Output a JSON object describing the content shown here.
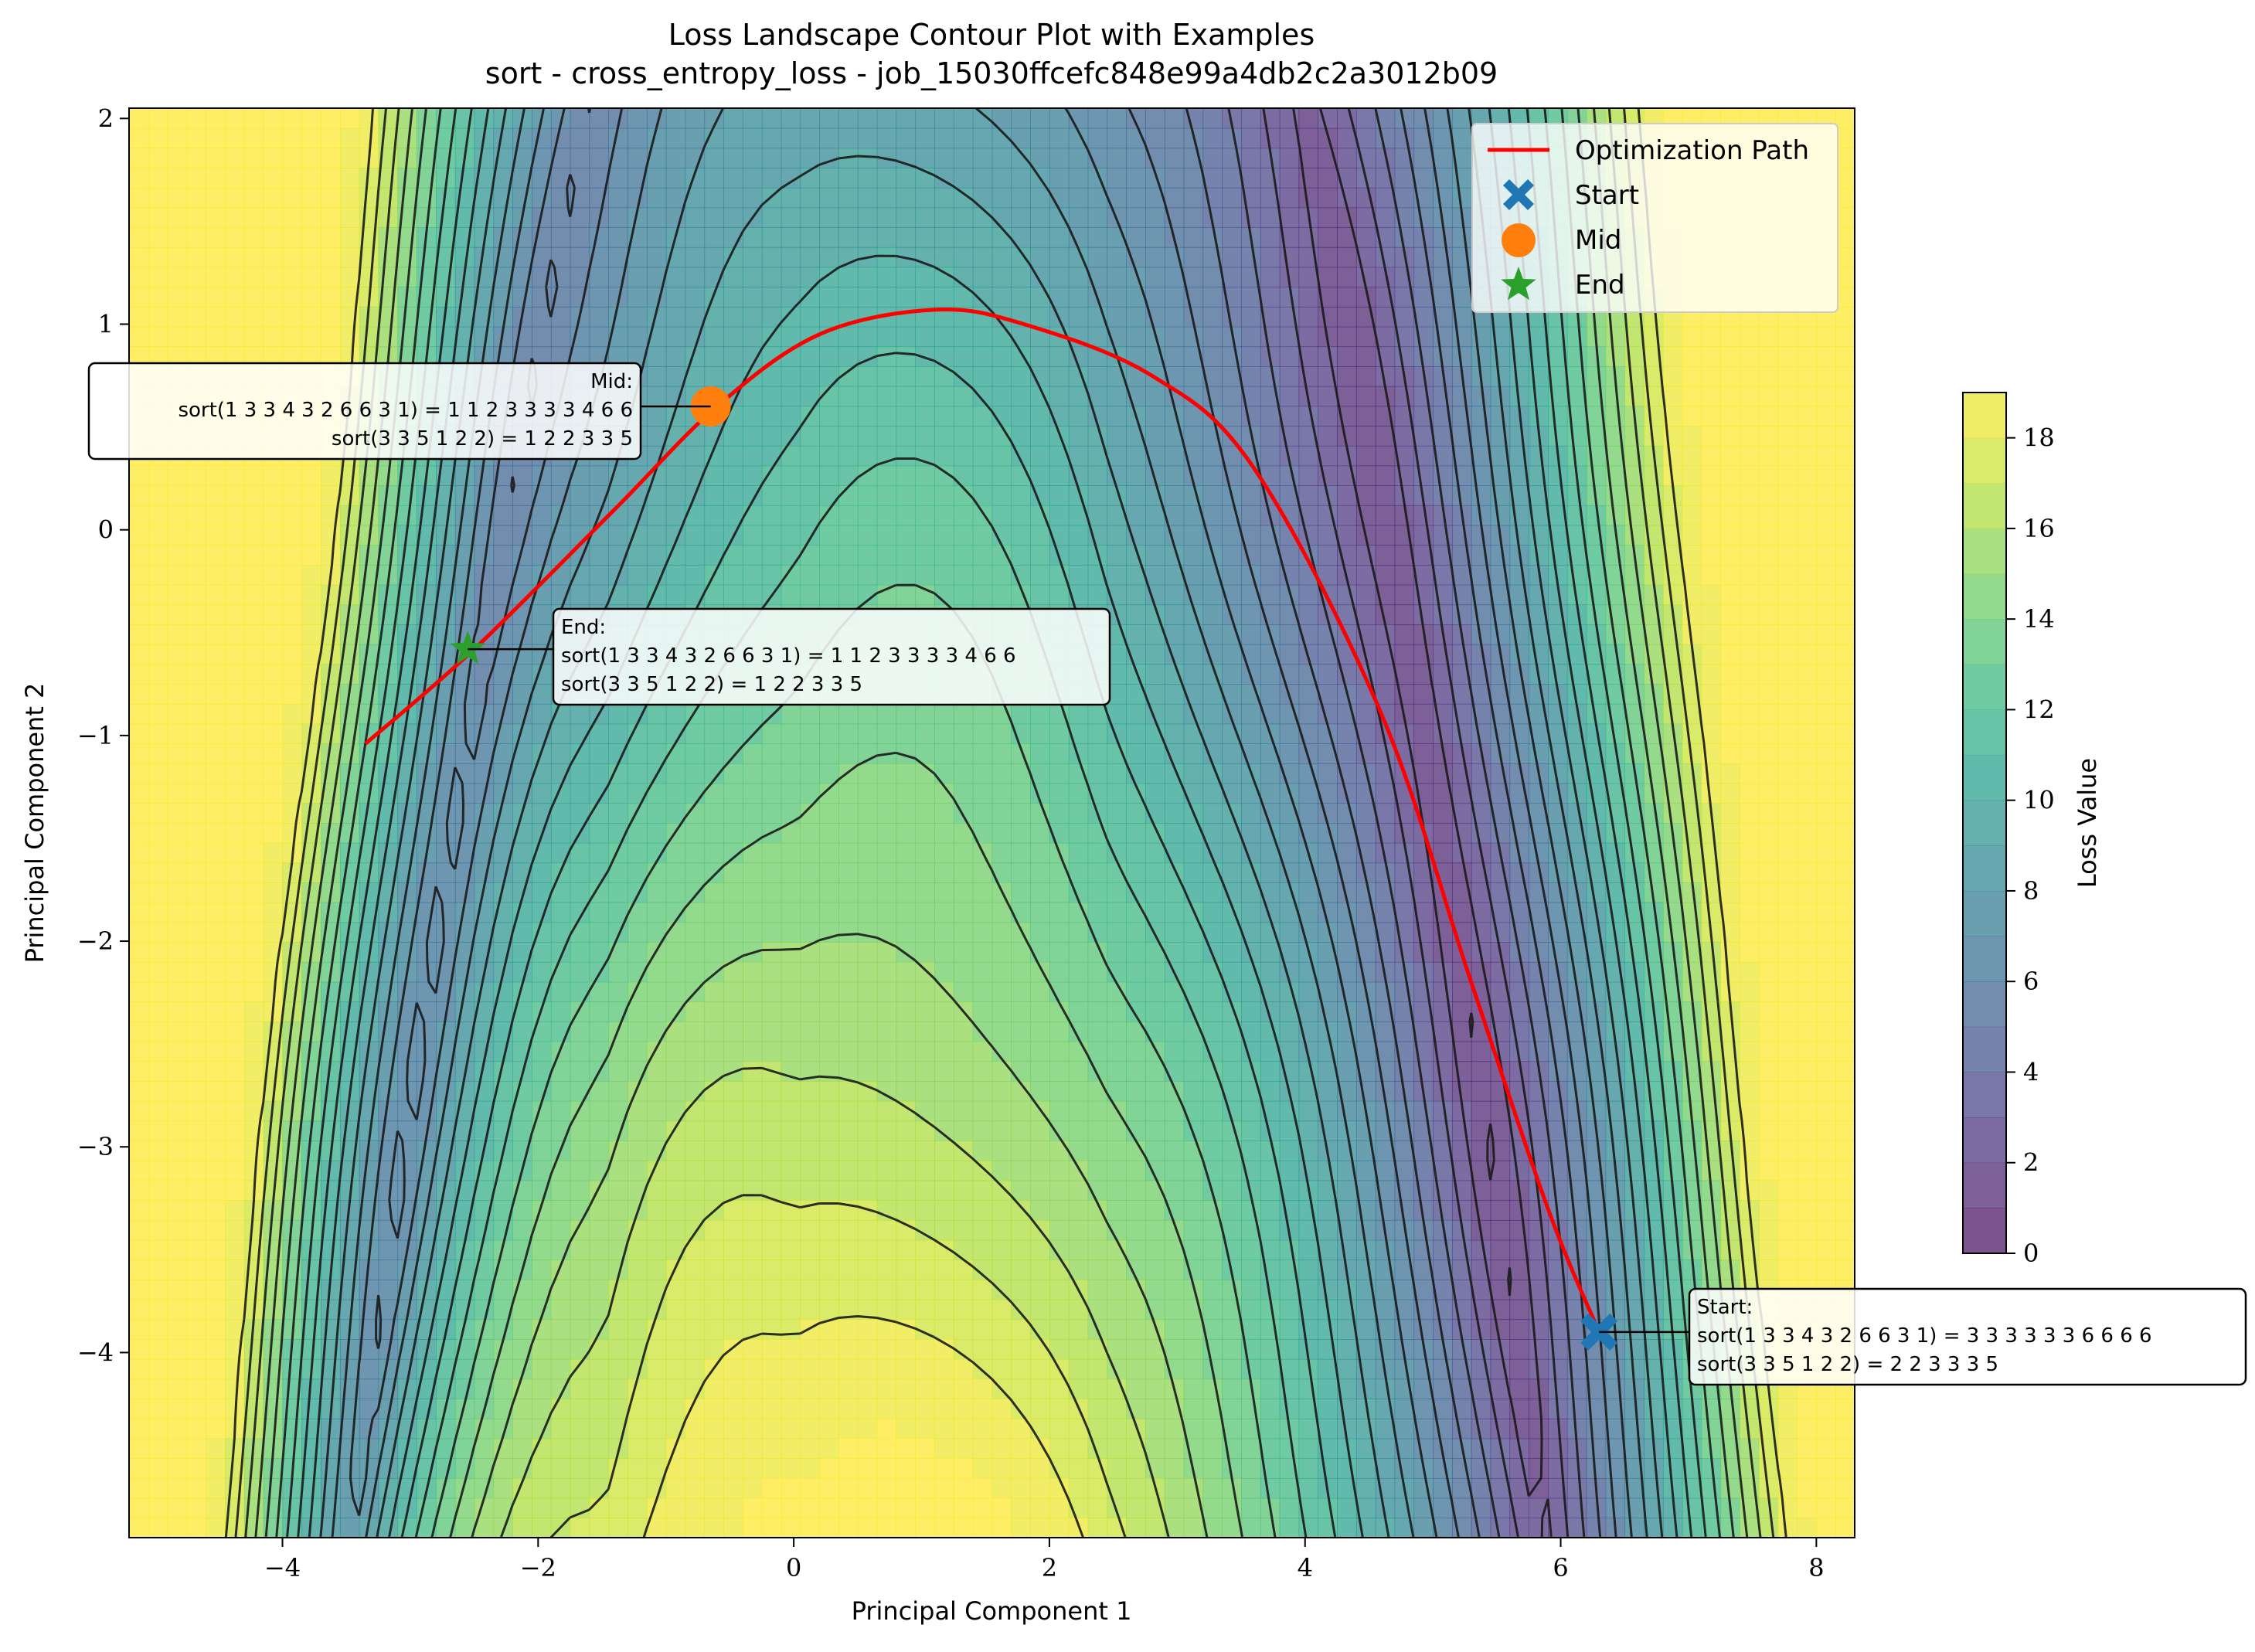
{
  "chart_data": {
    "type": "contour",
    "title_line1": "Loss Landscape Contour Plot with Examples",
    "title_line2": "sort - cross_entropy_loss - job_15030ffcefc848e99a4db2c2a3012b09",
    "xlabel": "Principal Component 1",
    "ylabel": "Principal Component 2",
    "xlim": [
      -5.2,
      8.3
    ],
    "ylim": [
      -4.9,
      2.05
    ],
    "xticks": [
      -4,
      -2,
      0,
      2,
      4,
      6,
      8
    ],
    "yticks": [
      -4,
      -3,
      -2,
      -1,
      0,
      1,
      2
    ],
    "colorbar": {
      "label": "Loss Value",
      "range": [
        0,
        19
      ],
      "ticks": [
        0,
        2,
        4,
        6,
        8,
        10,
        12,
        14,
        16,
        18
      ],
      "colormap": "viridis"
    },
    "optimization_path": {
      "name": "Optimization Path",
      "color": "#ff0000",
      "points": [
        [
          6.3,
          -3.9
        ],
        [
          5.9,
          -3.3
        ],
        [
          5.3,
          -2.2
        ],
        [
          4.6,
          -0.9
        ],
        [
          3.6,
          0.3
        ],
        [
          2.8,
          0.75
        ],
        [
          1.8,
          1.0
        ],
        [
          1.1,
          1.07
        ],
        [
          0.2,
          0.95
        ],
        [
          -0.6,
          0.6
        ],
        [
          -1.4,
          0.1
        ],
        [
          -2.5,
          -0.58
        ],
        [
          -3.35,
          -1.04
        ]
      ]
    },
    "markers": [
      {
        "name": "Start",
        "x": 6.3,
        "y": -3.9,
        "color": "#1f77b4",
        "shape": "X"
      },
      {
        "name": "Mid",
        "x": -0.65,
        "y": 0.6,
        "color": "#ff7f0e",
        "shape": "circle"
      },
      {
        "name": "End",
        "x": -2.55,
        "y": -0.58,
        "color": "#2ca02c",
        "shape": "star"
      }
    ],
    "annotations": [
      {
        "id": "mid",
        "lines": [
          "Mid:",
          "sort(1 3 3 4 3 2 6 6 3 1) = 1 1 2 3 3 3 3 4 6 6",
          "sort(3 3 5 1 2 2) = 1 2 2 3 3 5"
        ],
        "align": "right"
      },
      {
        "id": "end",
        "lines": [
          "End:",
          "sort(1 3 3 4 3 2 6 6 3 1) = 1 1 2 3 3 3 3 4 6 6",
          "sort(3 3 5 1 2 2) = 1 2 2 3 3 5"
        ],
        "align": "left"
      },
      {
        "id": "start",
        "lines": [
          "Start:",
          "sort(1 3 3 4 3 2 6 6 3 1) = 3 3 3 3 3 3 6 6 6 6",
          "sort(3 3 5 1 2 2) = 2 2 3 3 3 5"
        ],
        "align": "left"
      }
    ],
    "legend": {
      "placement": "upper right",
      "entries": [
        "Optimization Path",
        "Start",
        "Mid",
        "End"
      ]
    }
  }
}
